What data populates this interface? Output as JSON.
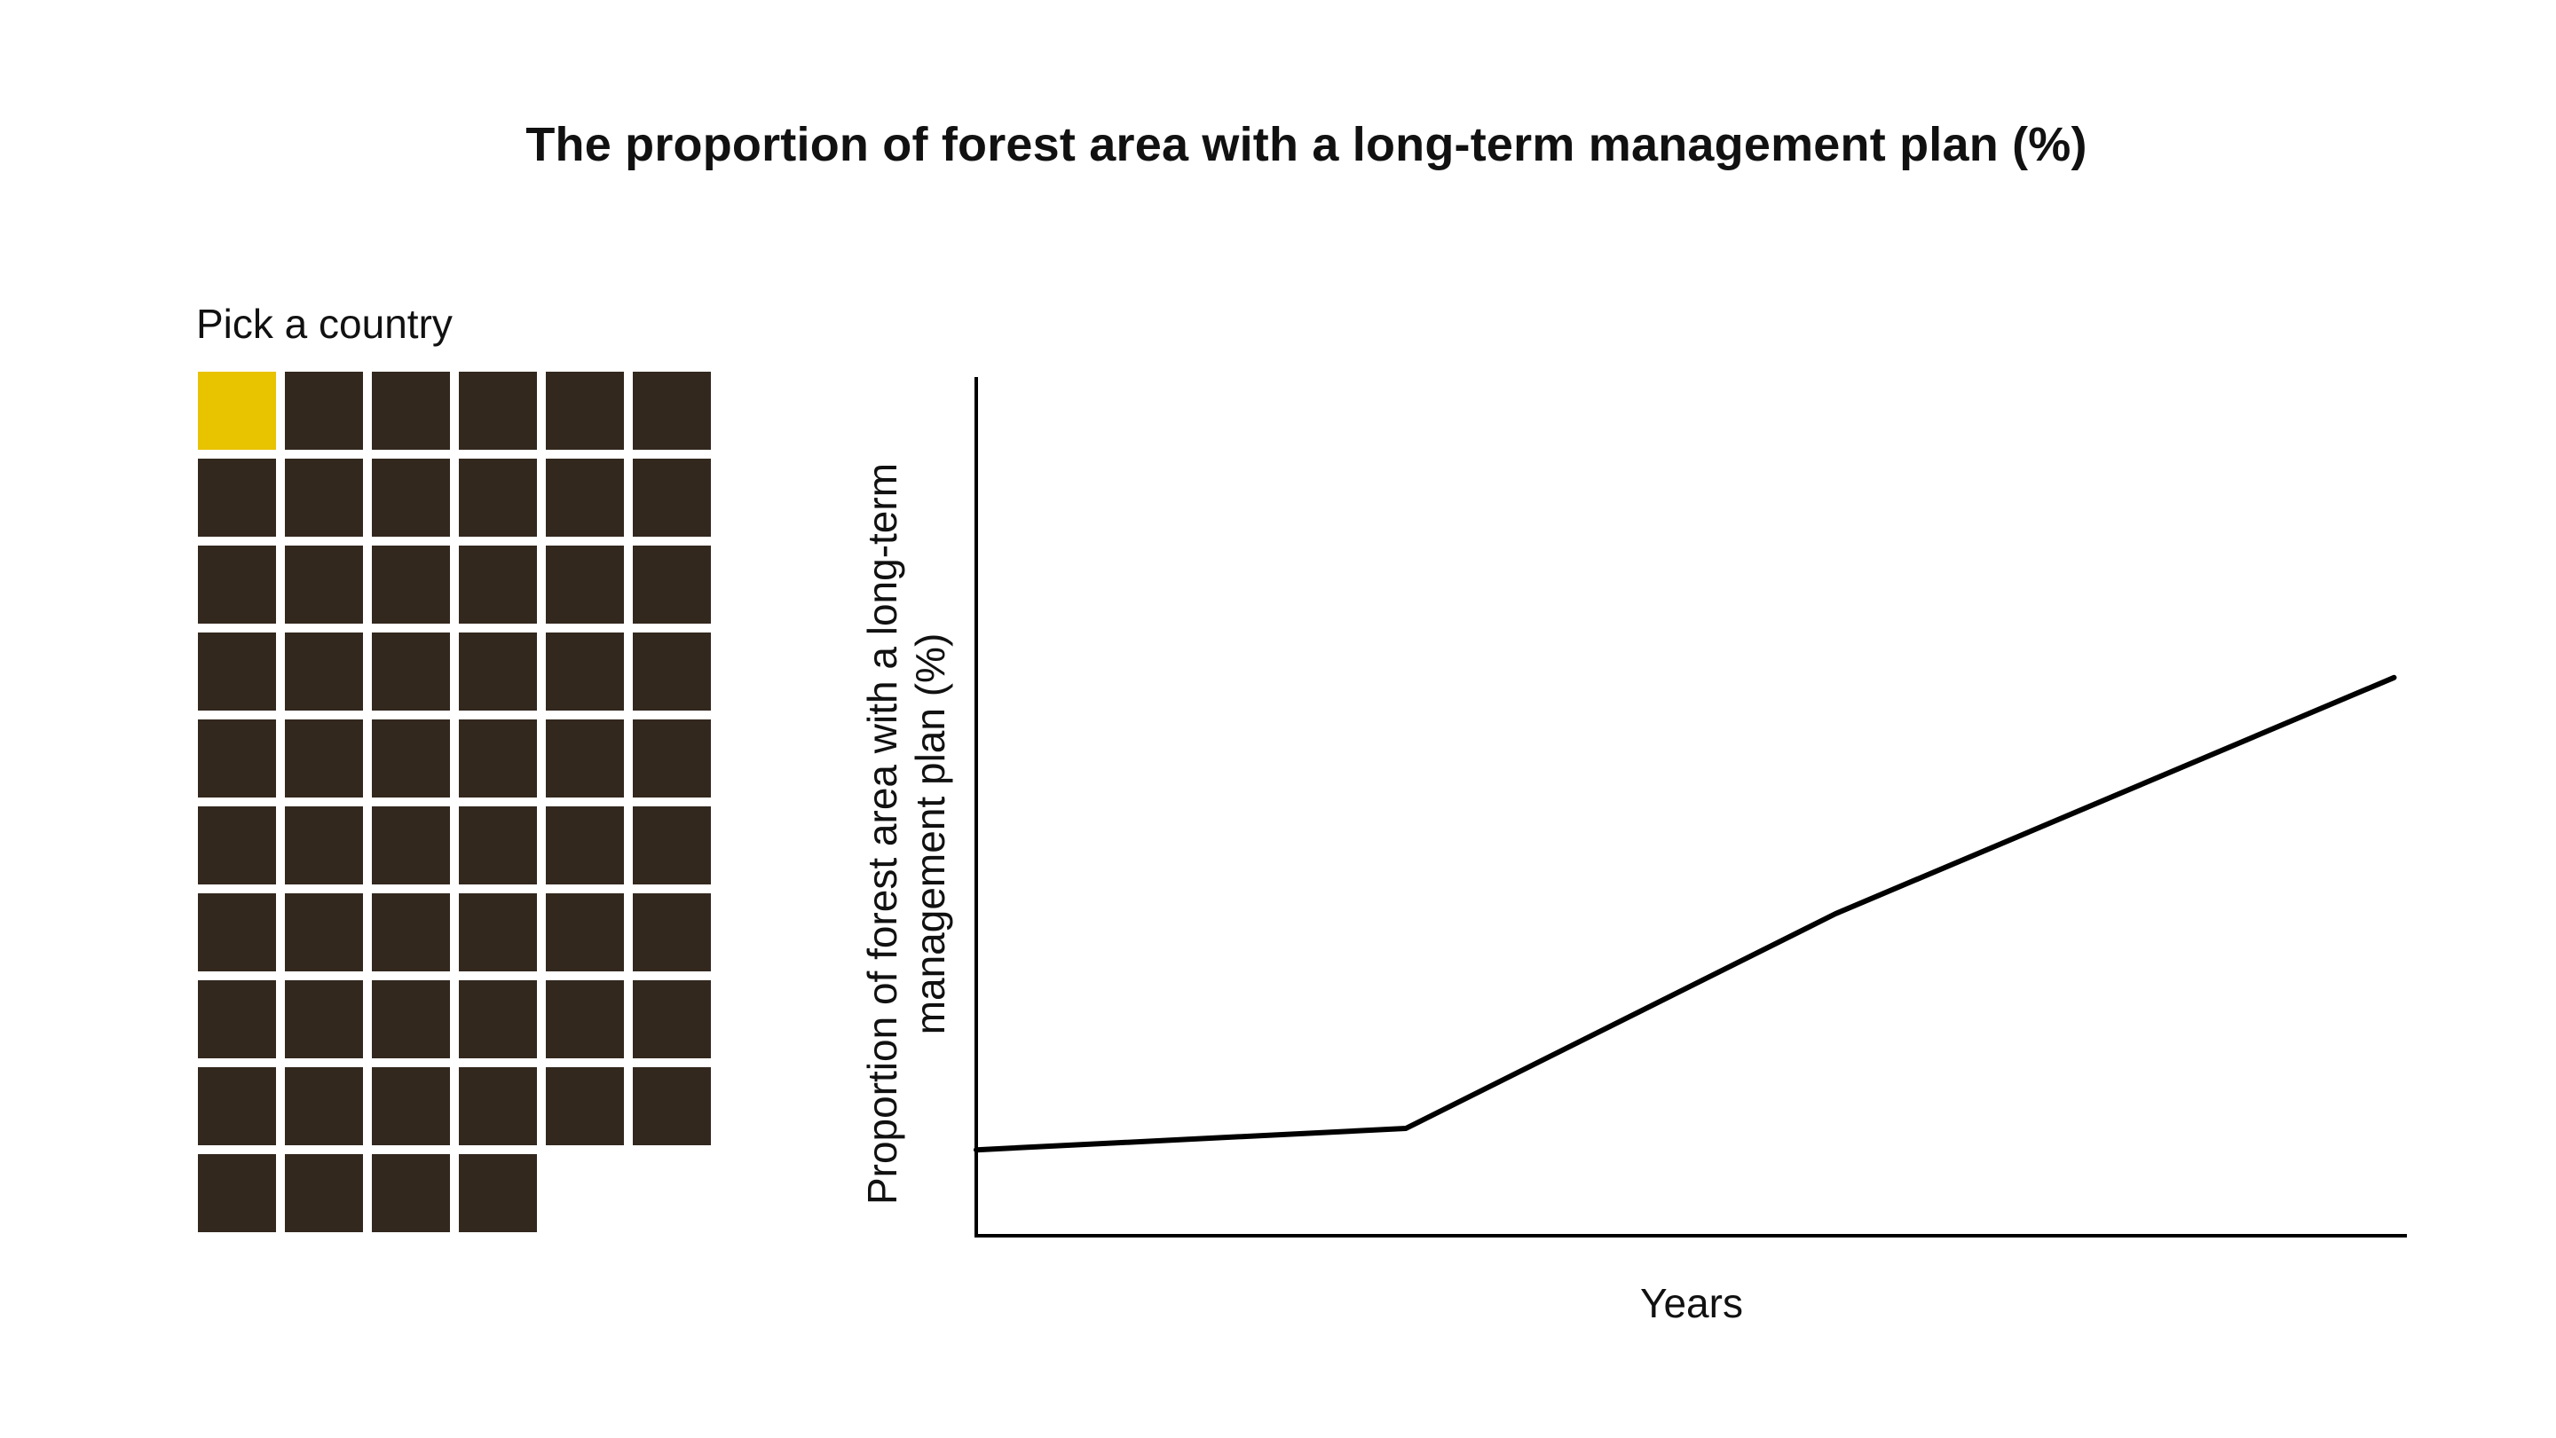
{
  "title": "The proportion of forest area with a long-term management plan (%)",
  "picker": {
    "label": "Pick a country",
    "rows": 10,
    "columns": 6,
    "country_count": 58,
    "selected_index": 0,
    "colors": {
      "selected": "#E8C300",
      "unselected": "#33281E"
    }
  },
  "chart_data": {
    "type": "line",
    "title": "",
    "xlabel": "Years",
    "ylabel_lines": [
      "Proportion of forest area with a long-term",
      "management plan (%)"
    ],
    "x": [
      0,
      1,
      2,
      3.3
    ],
    "y": [
      10,
      12.5,
      37.5,
      65
    ],
    "xlim": [
      0,
      3.33
    ],
    "ylim": [
      0,
      100
    ],
    "grid": false,
    "line_color": "#000000",
    "axis_color": "#000000"
  }
}
